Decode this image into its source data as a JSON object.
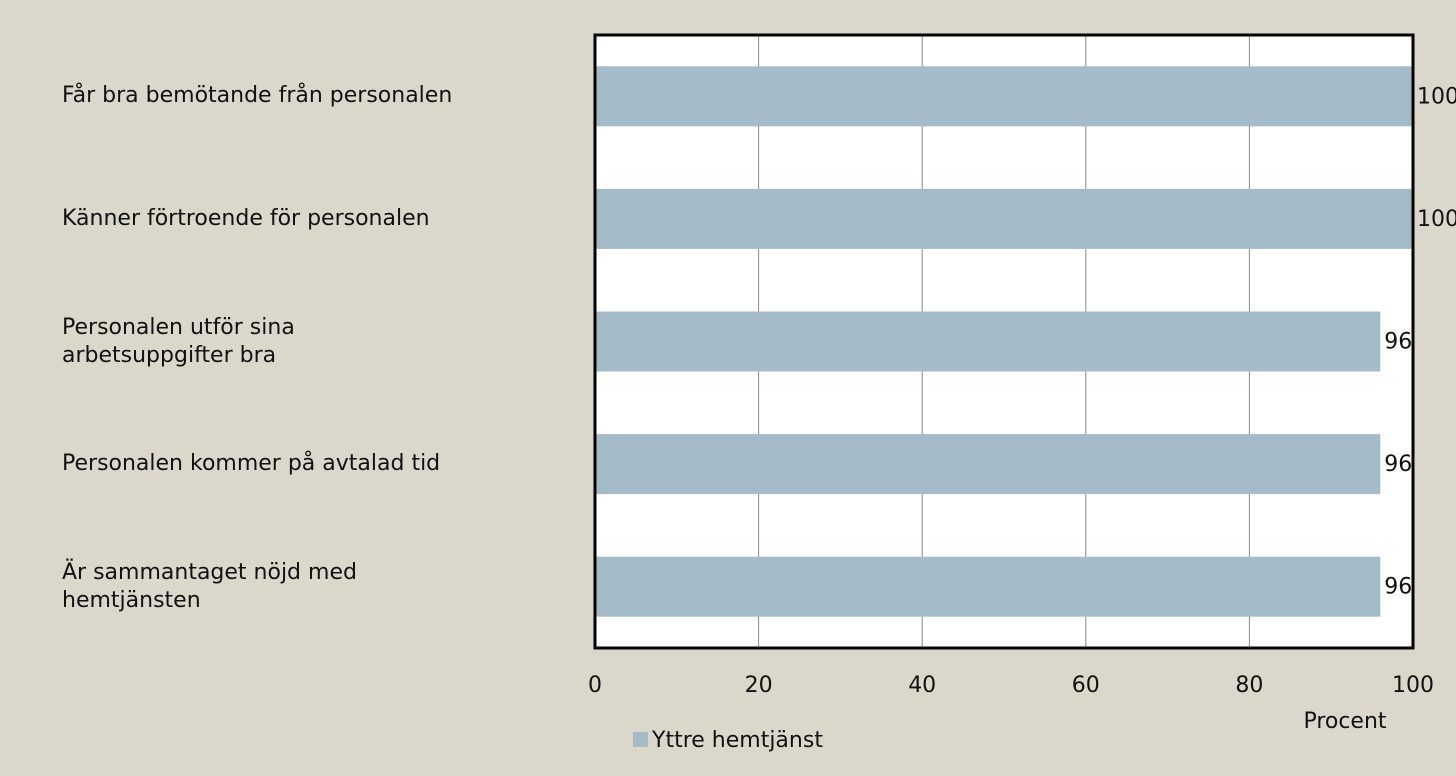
{
  "chart_data": {
    "type": "barh",
    "categories": [
      "Får bra bemötande från personalen",
      "Känner förtroende för personalen",
      "Personalen utför sina\narbetsuppgifter bra",
      "Personalen kommer på avtalad tid",
      "Är sammantaget nöjd med\nhemtjänsten"
    ],
    "series": [
      {
        "name": "Yttre hemtjänst",
        "color": "#a6bbc8",
        "values": [
          100,
          100,
          96,
          96,
          96
        ]
      }
    ],
    "xlabel": "Procent",
    "xlim": [
      0,
      100
    ],
    "xticks": [
      0,
      20,
      40,
      60,
      80,
      100
    ],
    "grid": true,
    "legend": "bottom"
  }
}
